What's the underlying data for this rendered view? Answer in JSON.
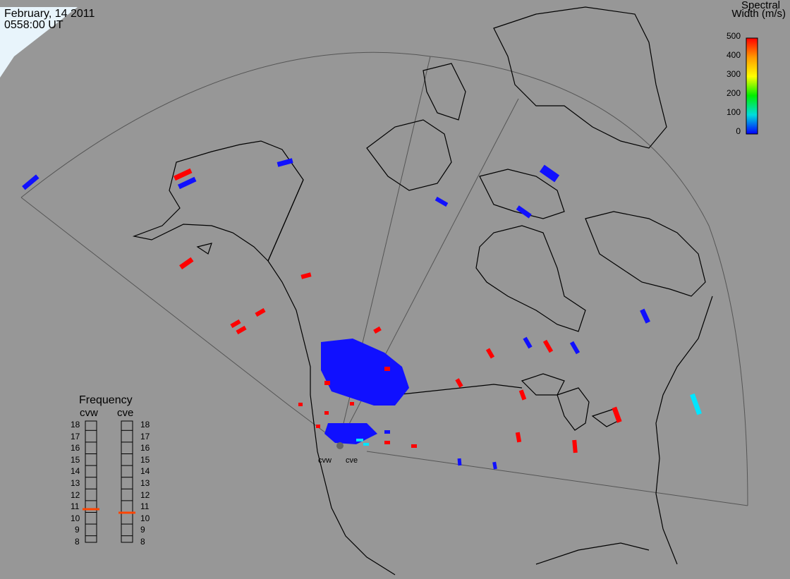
{
  "header": {
    "date": "February, 14 2011",
    "time": "0558:00 UT"
  },
  "colorbar": {
    "title_line1": "Spectral",
    "title_line2": "Width (m/s)",
    "ticks": [
      "500",
      "400",
      "300",
      "200",
      "100",
      "0"
    ],
    "range": [
      0,
      500
    ],
    "colors": [
      "#ff0000",
      "#ff9900",
      "#ffff00",
      "#00ee00",
      "#00dddd",
      "#0000ff"
    ]
  },
  "frequency": {
    "title": "Frequency",
    "left_label": "cvw",
    "right_label": "cve",
    "scale": [
      "18",
      "17",
      "16",
      "15",
      "14",
      "13",
      "12",
      "11",
      "10",
      "9",
      "8"
    ],
    "range": [
      8,
      18
    ],
    "cvw_mhz": 10.8,
    "cve_mhz": 10.5,
    "marker_color": "#ff4400"
  },
  "radars": {
    "west": "cvw",
    "east": "cve"
  },
  "colors": {
    "background": "#979797",
    "coast": "#000000",
    "fov": "#555555"
  }
}
